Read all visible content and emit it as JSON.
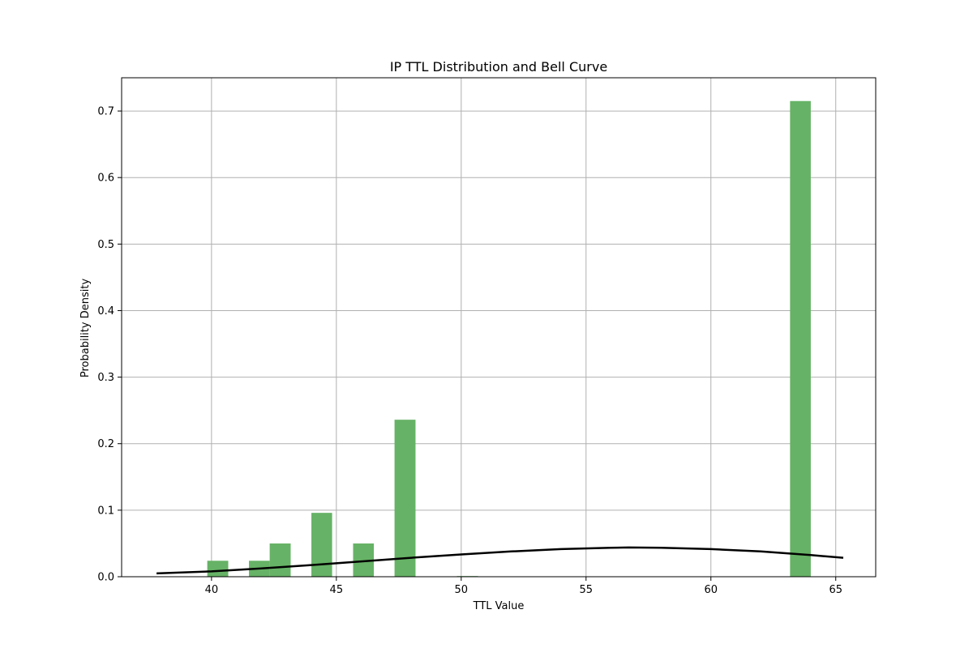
{
  "chart_data": {
    "type": "bar",
    "title": "IP TTL Distribution and Bell Curve",
    "xlabel": "TTL Value",
    "ylabel": "Probability Density",
    "xlim": [
      36.4,
      66.6
    ],
    "ylim": [
      0,
      0.75
    ],
    "xticks": [
      "40",
      "45",
      "50",
      "55",
      "60",
      "65"
    ],
    "xtick_values": [
      40,
      45,
      50,
      55,
      60,
      65
    ],
    "yticks": [
      "0.0",
      "0.1",
      "0.2",
      "0.3",
      "0.4",
      "0.5",
      "0.6",
      "0.7"
    ],
    "ytick_values": [
      0,
      0.1,
      0.2,
      0.3,
      0.4,
      0.5,
      0.6,
      0.7
    ],
    "grid": true,
    "histogram": {
      "color": "#66b266",
      "bins": [
        {
          "x0": 39.83,
          "x1": 40.67,
          "value": 0.024
        },
        {
          "x0": 41.5,
          "x1": 42.33,
          "value": 0.024
        },
        {
          "x0": 42.33,
          "x1": 43.17,
          "value": 0.05
        },
        {
          "x0": 44.0,
          "x1": 44.83,
          "value": 0.096
        },
        {
          "x0": 45.67,
          "x1": 46.5,
          "value": 0.05
        },
        {
          "x0": 47.33,
          "x1": 48.17,
          "value": 0.236
        },
        {
          "x0": 49.83,
          "x1": 50.67,
          "value": 0.001
        },
        {
          "x0": 63.17,
          "x1": 64.0,
          "value": 0.715
        }
      ]
    },
    "curve": {
      "type": "line",
      "color": "#000000",
      "x": [
        37.8,
        40,
        42,
        44,
        46,
        48,
        50,
        52,
        54,
        56,
        56.7,
        58,
        60,
        62,
        64,
        65.3
      ],
      "y": [
        0.005,
        0.008,
        0.0125,
        0.0175,
        0.023,
        0.0285,
        0.0335,
        0.038,
        0.0415,
        0.0435,
        0.044,
        0.0435,
        0.0415,
        0.038,
        0.0325,
        0.0285
      ]
    }
  }
}
